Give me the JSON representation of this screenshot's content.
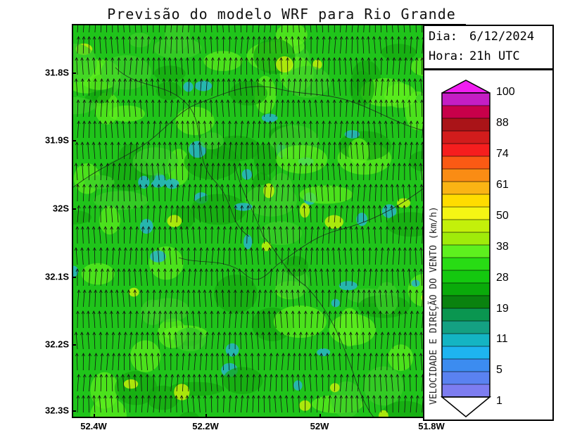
{
  "title": "Previsão do modelo WRF para Rio Grande",
  "info": {
    "day_label": "Dia:",
    "day_value": "6/12/2024",
    "hour_label": "Hora:",
    "hour_value": "21h UTC"
  },
  "y_axis": {
    "labels": [
      "31.8S",
      "31.9S",
      "32S",
      "32.1S",
      "32.2S",
      "32.3S"
    ],
    "values": [
      -31.8,
      -31.9,
      -32.0,
      -32.1,
      -32.2,
      -32.3
    ]
  },
  "x_axis": {
    "labels": [
      "52.4W",
      "52.2W",
      "52W",
      "51.8W"
    ],
    "values": [
      -52.4,
      -52.2,
      -52.0,
      -51.8
    ]
  },
  "colorbar": {
    "title": "VELOCIDADE E DIREÇÃO DO VENTO (km/h)",
    "tick_labels": [
      "100",
      "88",
      "74",
      "61",
      "50",
      "38",
      "28",
      "19",
      "11",
      "5",
      "1"
    ],
    "colors": [
      "#c41ec4",
      "#c8004a",
      "#aa1418",
      "#d21c1c",
      "#f51e1e",
      "#fa5a14",
      "#fa8c14",
      "#fab414",
      "#ffdc00",
      "#f5f514",
      "#c3f00a",
      "#a0eb0a",
      "#5ef01e",
      "#28dc14",
      "#14c80f",
      "#0aaa0a",
      "#0a820f",
      "#0a9650",
      "#14a082",
      "#14b4c3",
      "#1eb4f0",
      "#3c8cf0",
      "#5a82f0",
      "#7d7df0"
    ],
    "top_color": "#f01ef0",
    "bottom_color": "#ffffff"
  },
  "map": {
    "background_color": "#1fc41a",
    "patch_colors": [
      "#14a80f",
      "#5ef01e",
      "#3ccf2a",
      "#28b4c8",
      "#c3f00a"
    ],
    "wind_direction": "south-to-north"
  }
}
